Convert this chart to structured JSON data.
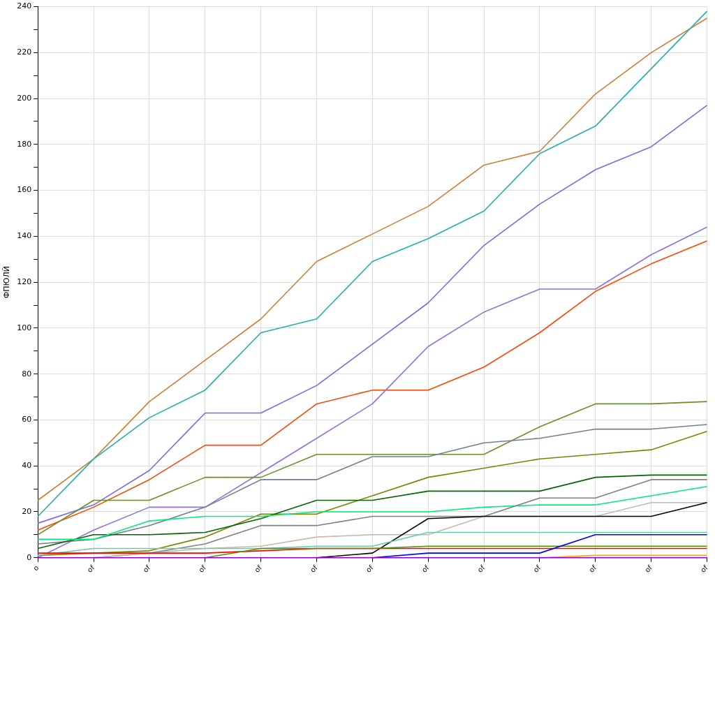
{
  "chart_data": {
    "type": "line",
    "ylabel": "ФПЮЛЙ",
    "categories": [
      "o",
      "of",
      "of",
      "of",
      "of",
      "of",
      "of",
      "of",
      "of",
      "of",
      "of",
      "of",
      "of"
    ],
    "ylim": [
      0,
      240
    ],
    "yticks": [
      0,
      {
        "value": 10,
        "label": null
      },
      20,
      {
        "value": 30,
        "label": null
      },
      40,
      {
        "value": 50,
        "label": null
      },
      60,
      {
        "value": 70,
        "label": null
      },
      80,
      {
        "value": 90,
        "label": null
      },
      100,
      {
        "value": 110,
        "label": null
      },
      120,
      {
        "value": 130,
        "label": null
      },
      140,
      {
        "value": 150,
        "label": null
      },
      160,
      {
        "value": 170,
        "label": null
      },
      180,
      {
        "value": 190,
        "label": null
      },
      200,
      {
        "value": 210,
        "label": null
      },
      220,
      {
        "value": 230,
        "label": null
      },
      240
    ],
    "grid": true,
    "legend": false,
    "marker": "none",
    "line_style": "solid",
    "series": [
      {
        "color": "#cd7f32",
        "values": [
          25,
          43,
          68,
          86,
          104,
          129,
          141,
          153,
          171,
          177,
          202,
          220,
          235
        ]
      },
      {
        "color": "#20b2aa",
        "values": [
          18,
          43,
          61,
          73,
          98,
          104,
          129,
          139,
          151,
          176,
          188,
          213,
          238
        ]
      },
      {
        "color": "#7b68ee",
        "values": [
          15,
          23,
          38,
          63,
          63,
          75,
          93,
          111,
          136,
          154,
          169,
          179,
          197
        ]
      },
      {
        "color": "#ff4500",
        "values": [
          12,
          22,
          34,
          49,
          49,
          67,
          73,
          73,
          83,
          98,
          116,
          128,
          138
        ]
      },
      {
        "color": "#9370db",
        "values": [
          0,
          12,
          22,
          22,
          37,
          52,
          67,
          92,
          107,
          117,
          117,
          132,
          144
        ]
      },
      {
        "color": "#6b8e23",
        "values": [
          10,
          25,
          25,
          35,
          35,
          45,
          45,
          45,
          45,
          57,
          67,
          67,
          68
        ]
      },
      {
        "color": "#708090",
        "values": [
          6,
          8,
          14,
          22,
          34,
          34,
          44,
          44,
          50,
          52,
          56,
          56,
          58
        ]
      },
      {
        "color": "#808000",
        "values": [
          1,
          2,
          3,
          9,
          19,
          19,
          27,
          35,
          39,
          43,
          45,
          47,
          55
        ]
      },
      {
        "color": "#006400",
        "values": [
          4,
          10,
          10,
          11,
          17,
          25,
          25,
          29,
          29,
          29,
          35,
          36,
          36
        ]
      },
      {
        "color": "#00ee76",
        "values": [
          8,
          8,
          16,
          18,
          18,
          20,
          20,
          20,
          22,
          23,
          23,
          27,
          31
        ]
      },
      {
        "color": "#808080",
        "values": [
          null,
          0,
          2,
          6,
          14,
          14,
          18,
          18,
          18,
          26,
          26,
          34,
          34
        ]
      },
      {
        "color": "#c8b8a8",
        "values": [
          null,
          0,
          2,
          4,
          5,
          9,
          10,
          10,
          18,
          18,
          18,
          24,
          24
        ]
      },
      {
        "color": "#000000",
        "values": [
          null,
          null,
          null,
          null,
          null,
          0,
          2,
          17,
          18,
          18,
          18,
          18,
          24
        ]
      },
      {
        "color": "#66cdaa",
        "values": [
          1,
          4,
          4,
          4,
          4,
          5,
          5,
          11,
          11,
          11,
          11,
          11,
          11
        ]
      },
      {
        "color": "#ff0000",
        "values": [
          2,
          2,
          2,
          2,
          3,
          4,
          4,
          4,
          4,
          4,
          4,
          4,
          4
        ]
      },
      {
        "color": "#4f8f00",
        "values": [
          null,
          null,
          null,
          0,
          4,
          4,
          4,
          5,
          5,
          5,
          5,
          5,
          5
        ]
      },
      {
        "color": "#0000ff",
        "values": [
          null,
          null,
          null,
          null,
          null,
          null,
          0,
          2,
          2,
          2,
          10,
          10,
          10
        ]
      },
      {
        "color": "#ffa500",
        "values": [
          null,
          null,
          null,
          null,
          null,
          null,
          null,
          null,
          null,
          0,
          1,
          1,
          1
        ]
      },
      {
        "color": "#9400d3",
        "values": [
          0,
          0,
          0,
          0,
          0,
          0,
          0,
          0,
          0,
          0,
          0,
          0,
          0
        ]
      }
    ]
  }
}
